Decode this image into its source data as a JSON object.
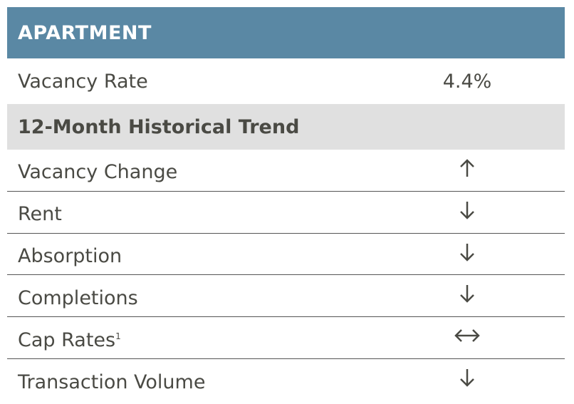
{
  "header": {
    "title": "APARTMENT"
  },
  "vacancy": {
    "label": "Vacancy Rate",
    "value": "4.4%"
  },
  "trend": {
    "title": "12-Month Historical Trend",
    "rows": [
      {
        "label": "Vacancy Change",
        "direction": "up"
      },
      {
        "label": "Rent",
        "direction": "down"
      },
      {
        "label": "Absorption",
        "direction": "down"
      },
      {
        "label": "Completions",
        "direction": "down"
      },
      {
        "label": "Cap Rates",
        "footnote": "1",
        "direction": "flat"
      },
      {
        "label": "Transaction Volume",
        "direction": "down"
      }
    ]
  },
  "colors": {
    "header_bg": "#5a88a4",
    "subheader_bg": "#e0e0e0",
    "text": "#4a4a44",
    "arrow": "#4a4a44"
  }
}
